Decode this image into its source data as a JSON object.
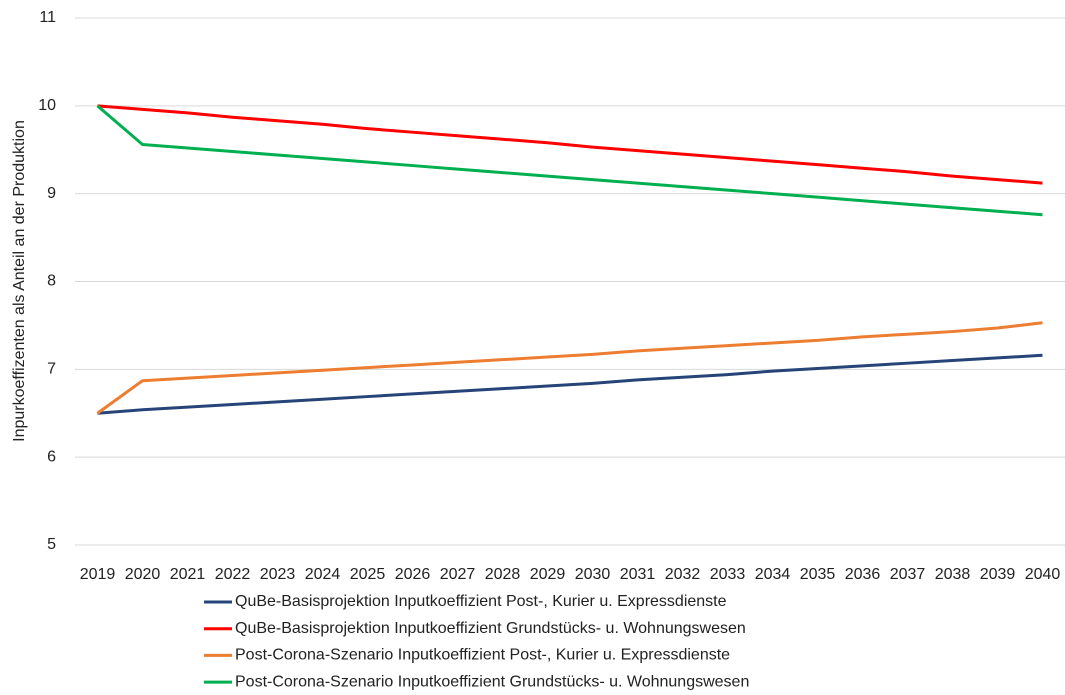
{
  "chart_data": {
    "type": "line",
    "y_label": "Inpurkoeffizenten als Anteil an der Produktion",
    "categories": [
      "2019",
      "2020",
      "2021",
      "2022",
      "2023",
      "2024",
      "2025",
      "2026",
      "2027",
      "2028",
      "2029",
      "2030",
      "2031",
      "2032",
      "2033",
      "2034",
      "2035",
      "2036",
      "2037",
      "2038",
      "2039",
      "2040"
    ],
    "series": [
      {
        "name": "QuBe-Basisprojektion Inputkoeffizient Post-, Kurier u. Expressdienste",
        "color": "#264478",
        "values": [
          6.5,
          6.54,
          6.57,
          6.6,
          6.63,
          6.66,
          6.69,
          6.72,
          6.75,
          6.78,
          6.81,
          6.84,
          6.88,
          6.91,
          6.94,
          6.98,
          7.01,
          7.04,
          7.07,
          7.1,
          7.13,
          7.16
        ]
      },
      {
        "name": "QuBe-Basisprojektion Inputkoeffizient Grundstücks- u. Wohnungswesen",
        "color": "#ff0000",
        "values": [
          10.0,
          9.96,
          9.92,
          9.87,
          9.83,
          9.79,
          9.74,
          9.7,
          9.66,
          9.62,
          9.58,
          9.53,
          9.49,
          9.45,
          9.41,
          9.37,
          9.33,
          9.29,
          9.25,
          9.2,
          9.16,
          9.12
        ]
      },
      {
        "name": "Post-Corona-Szenario Inputkoeffizient Post-, Kurier u. Expressdienste",
        "color": "#ed7d31",
        "values": [
          6.5,
          6.87,
          6.9,
          6.93,
          6.96,
          6.99,
          7.02,
          7.05,
          7.08,
          7.11,
          7.14,
          7.17,
          7.21,
          7.24,
          7.27,
          7.3,
          7.33,
          7.37,
          7.4,
          7.43,
          7.47,
          7.53
        ]
      },
      {
        "name": "Post-Corona-Szenario Inputkoeffizient Grundstücks- u. Wohnungswesen",
        "color": "#00b050",
        "values": [
          10.0,
          9.56,
          9.52,
          9.48,
          9.44,
          9.4,
          9.36,
          9.32,
          9.28,
          9.24,
          9.2,
          9.16,
          9.12,
          9.08,
          9.04,
          9.0,
          8.96,
          8.92,
          8.88,
          8.84,
          8.8,
          8.76
        ]
      }
    ],
    "ylim": [
      5,
      11
    ],
    "yticks": [
      5,
      6,
      7,
      8,
      9,
      10,
      11
    ],
    "grid": true,
    "legend": "bottom"
  }
}
